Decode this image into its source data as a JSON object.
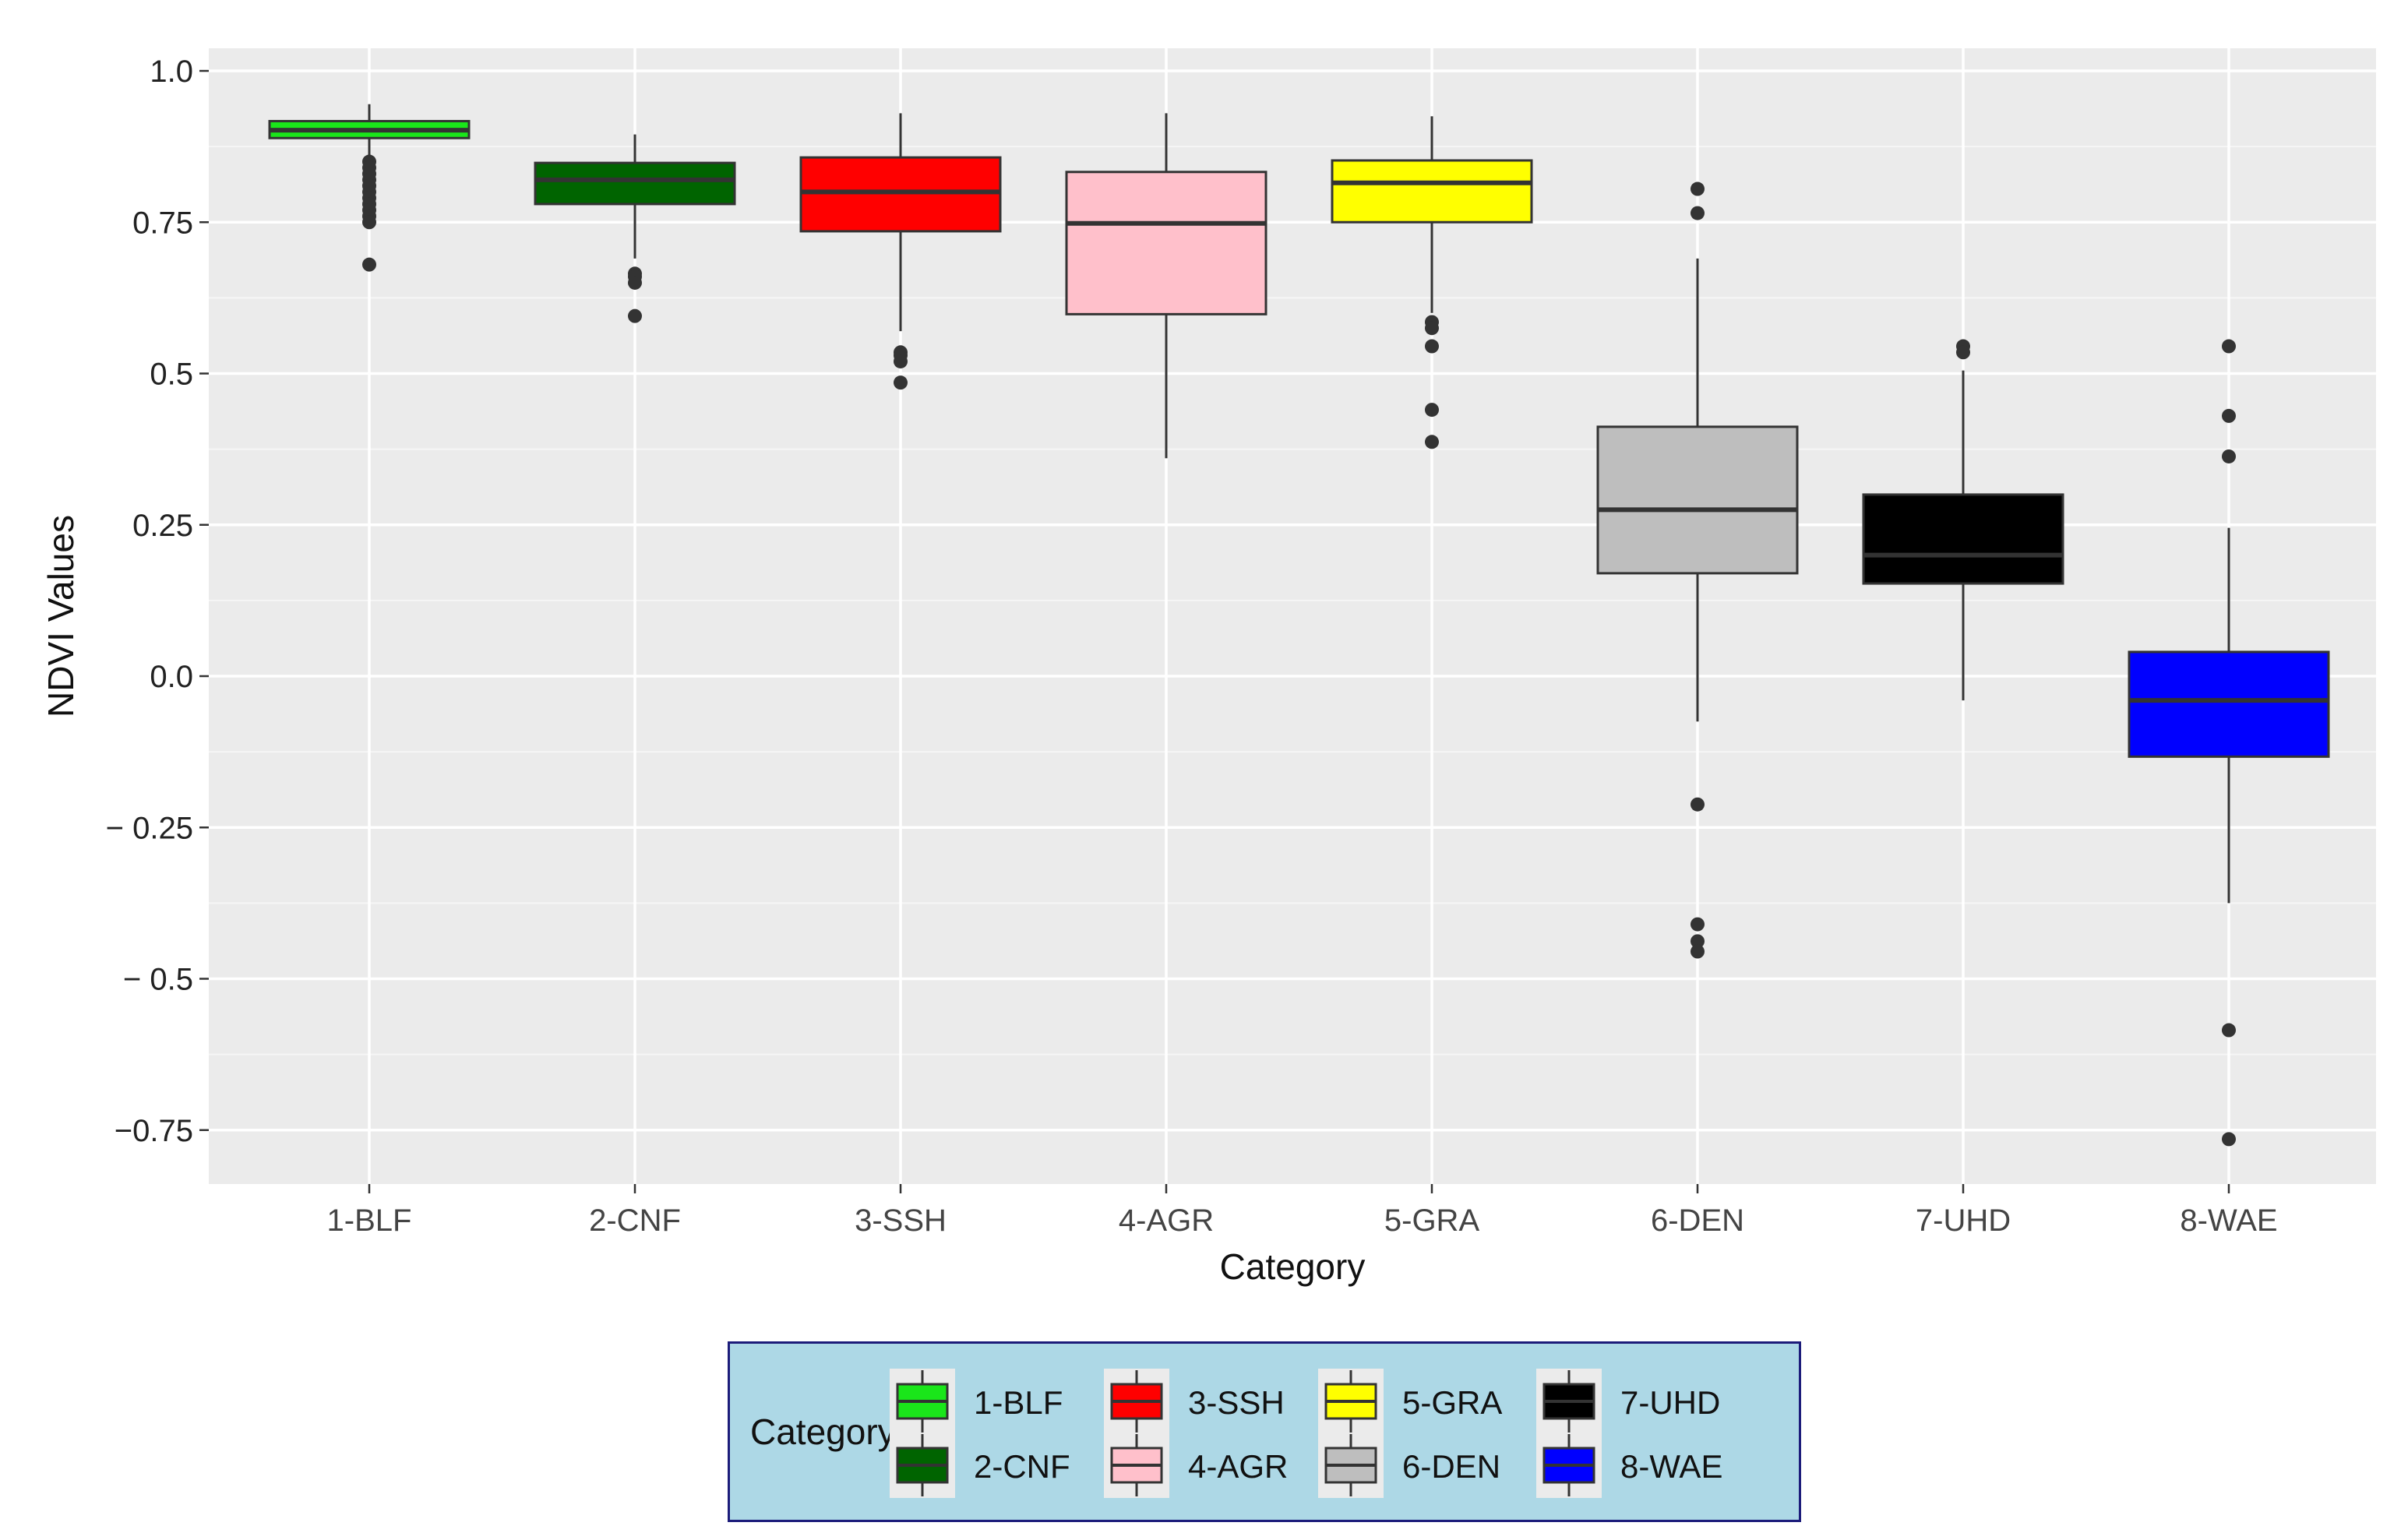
{
  "chart_data": {
    "type": "box",
    "title": "",
    "xlabel": "Category",
    "ylabel": "NDVI  Values",
    "ylim": [
      -0.84,
      1.03
    ],
    "y_ticks": [
      {
        "value": 1.0,
        "label": "1.0"
      },
      {
        "value": 0.75,
        "label": "0.75"
      },
      {
        "value": 0.5,
        "label": "0.5"
      },
      {
        "value": 0.25,
        "label": "0.25"
      },
      {
        "value": 0.0,
        "label": "0.0"
      },
      {
        "value": -0.25,
        "label": "− 0.25"
      },
      {
        "value": -0.5,
        "label": "−  0.5"
      },
      {
        "value": -0.75,
        "label": "−0.75"
      }
    ],
    "grid": true,
    "legend_position": "bottom",
    "legend_title": "Category",
    "categories": [
      "1-BLF",
      "2-CNF",
      "3-SSH",
      "4-AGR",
      "5-GRA",
      "6-DEN",
      "7-UHD",
      "8-WAE"
    ],
    "series": [
      {
        "name": "1-BLF",
        "color": "#1ae61a",
        "whisker_low": 0.86,
        "q1": 0.889,
        "median": 0.902,
        "q3": 0.917,
        "whisker_high": 0.945,
        "outliers": [
          0.85,
          0.84,
          0.83,
          0.82,
          0.81,
          0.8,
          0.79,
          0.78,
          0.77,
          0.76,
          0.75,
          0.68
        ]
      },
      {
        "name": "2-CNF",
        "color": "#006400",
        "whisker_low": 0.69,
        "q1": 0.78,
        "median": 0.82,
        "q3": 0.848,
        "whisker_high": 0.895,
        "outliers": [
          0.665,
          0.66,
          0.65,
          0.595
        ]
      },
      {
        "name": "3-SSH",
        "color": "#ff0000",
        "whisker_low": 0.57,
        "q1": 0.735,
        "median": 0.8,
        "q3": 0.857,
        "whisker_high": 0.93,
        "outliers": [
          0.535,
          0.53,
          0.52,
          0.485
        ]
      },
      {
        "name": "4-AGR",
        "color": "#ffc0cb",
        "whisker_low": 0.36,
        "q1": 0.598,
        "median": 0.748,
        "q3": 0.833,
        "whisker_high": 0.93,
        "outliers": []
      },
      {
        "name": "5-GRA",
        "color": "#ffff00",
        "whisker_low": 0.6,
        "q1": 0.75,
        "median": 0.815,
        "q3": 0.852,
        "whisker_high": 0.925,
        "outliers": [
          0.585,
          0.575,
          0.545,
          0.44,
          0.387
        ]
      },
      {
        "name": "6-DEN",
        "color": "#bebebe",
        "whisker_low": -0.075,
        "q1": 0.17,
        "median": 0.275,
        "q3": 0.412,
        "whisker_high": 0.69,
        "outliers": [
          0.805,
          0.765,
          -0.212,
          -0.41,
          -0.438,
          -0.455
        ]
      },
      {
        "name": "7-UHD",
        "color": "#000000",
        "whisker_low": -0.04,
        "q1": 0.153,
        "median": 0.2,
        "q3": 0.3,
        "whisker_high": 0.505,
        "outliers": [
          0.545,
          0.535
        ]
      },
      {
        "name": "8-WAE",
        "color": "#0000ff",
        "whisker_low": -0.375,
        "q1": -0.133,
        "median": -0.04,
        "q3": 0.04,
        "whisker_high": 0.245,
        "outliers": [
          0.545,
          0.43,
          0.363,
          -0.585,
          -0.765
        ]
      }
    ]
  }
}
